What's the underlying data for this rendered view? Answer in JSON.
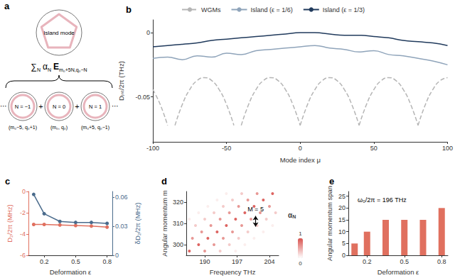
{
  "diagram": {
    "panel": "a",
    "top": {
      "label": "Island mode"
    },
    "formula": [
      {
        "text": "∑",
        "sub": "N"
      },
      {
        "text": "α",
        "sub": "N"
      },
      {
        "text": "E",
        "sub": "m₀+5N,q₀−N"
      }
    ],
    "modes": [
      {
        "label": "N = −1",
        "caption": "(m₀−5, q₀+1)"
      },
      {
        "label": "N = 0",
        "caption": "(m₀, q₀)"
      },
      {
        "label": "N = 1",
        "caption": "(m₀+5, q₀−1)"
      }
    ],
    "operator": "+",
    "ellipsis": "⋯"
  },
  "chart_data": [
    {
      "panel": "b",
      "type": "line",
      "xlabel": "Mode index μ",
      "ylabel": "Dᵢₙₜ/2π (THz)",
      "xlim": [
        -100,
        100
      ],
      "xticks": [
        -100,
        -50,
        0,
        50,
        100
      ],
      "ylim": [
        -0.085,
        0.01
      ],
      "yticks": [
        -0.05,
        0
      ],
      "grid": false,
      "legend": "top",
      "series": [
        {
          "name": "WGMs",
          "color": "#b5b5b5",
          "line_style": "dashed",
          "segments": [
            {
              "x": [
                -100,
                -95,
                -90
              ],
              "values": [
                -0.0443,
                -0.0559,
                -0.0722
              ]
            },
            {
              "x": [
                -85,
                -80,
                -75,
                -70,
                -65,
                -60,
                -55,
                -50,
                -45
              ],
              "values": [
                -0.0722,
                -0.0559,
                -0.0443,
                -0.0373,
                -0.035,
                -0.0373,
                -0.0443,
                -0.0559,
                -0.0722
              ]
            },
            {
              "x": [
                -40,
                -35,
                -30,
                -25,
                -20,
                -15,
                -10,
                -5,
                0
              ],
              "values": [
                -0.0722,
                -0.0559,
                -0.0443,
                -0.0373,
                -0.035,
                -0.0373,
                -0.0443,
                -0.0559,
                -0.0722
              ]
            },
            {
              "x": [
                0,
                5,
                10,
                15,
                20,
                25,
                30,
                35,
                40
              ],
              "values": [
                -0.0722,
                -0.0559,
                -0.0443,
                -0.0373,
                -0.035,
                -0.0373,
                -0.0443,
                -0.0559,
                -0.0722
              ]
            },
            {
              "x": [
                40,
                45,
                50,
                55,
                60,
                65,
                70,
                75,
                80
              ],
              "values": [
                -0.0722,
                -0.0559,
                -0.0443,
                -0.0373,
                -0.035,
                -0.0373,
                -0.0443,
                -0.0559,
                -0.0722
              ]
            },
            {
              "x": [
                80,
                85,
                90,
                95,
                100
              ],
              "values": [
                -0.0722,
                -0.0559,
                -0.0443,
                -0.0373,
                -0.035
              ]
            }
          ]
        },
        {
          "name": "Island (ε = 1/6)",
          "color": "#8fa4ba",
          "line_style": "solid",
          "x": [
            -100,
            -90,
            -80,
            -70,
            -60,
            -50,
            -40,
            -30,
            -20,
            -10,
            0,
            10,
            20,
            30,
            40,
            50,
            60,
            70,
            80,
            90,
            100
          ],
          "values": [
            -0.02,
            -0.019,
            -0.021,
            -0.018,
            -0.019,
            -0.016,
            -0.017,
            -0.014,
            -0.013,
            -0.012,
            -0.011,
            -0.01,
            -0.012,
            -0.013,
            -0.015,
            -0.014,
            -0.017,
            -0.018,
            -0.02,
            -0.022,
            -0.025
          ]
        },
        {
          "name": "Island (ε = 1/3)",
          "color": "#203a5c",
          "line_style": "solid",
          "x": [
            -100,
            -90,
            -80,
            -70,
            -60,
            -50,
            -40,
            -30,
            -20,
            -10,
            0,
            10,
            20,
            30,
            40,
            50,
            60,
            70,
            80,
            90,
            100
          ],
          "values": [
            -0.011,
            -0.01,
            -0.009,
            -0.008,
            -0.006,
            -0.005,
            -0.004,
            -0.003,
            -0.002,
            -0.001,
            0.0,
            0.0,
            -0.001,
            -0.002,
            -0.002,
            -0.003,
            -0.004,
            -0.006,
            -0.007,
            -0.008,
            -0.01
          ]
        }
      ]
    },
    {
      "panel": "c",
      "type": "line",
      "xlabel": "Deformation ε",
      "ylabel": "D₂/2π (MHz)",
      "y2label": "δD₂/2π (MHz)",
      "xlim": [
        0.05,
        0.85
      ],
      "xticks": [
        0.2,
        0.5,
        0.8
      ],
      "ylim": [
        -6,
        0
      ],
      "yticks": [
        -6,
        -4,
        -2,
        0
      ],
      "y2lim": [
        0,
        0.066
      ],
      "y2ticks": [
        0,
        0.03,
        0.06
      ],
      "grid": false,
      "marker": "circle",
      "x": [
        0.1,
        0.2,
        0.35,
        0.5,
        0.65,
        0.8
      ],
      "series": [
        {
          "color": "#e0705f",
          "values": [
            -3.1,
            -3.1,
            -3.15,
            -3.2,
            -3.25,
            -3.35
          ]
        },
        {
          "color": "#4a6b8c",
          "axis": "y2",
          "values": [
            0.063,
            0.043,
            0.035,
            0.034,
            0.034,
            0.033
          ]
        }
      ]
    },
    {
      "panel": "d",
      "type": "scatter",
      "xlabel": "Frequency THz",
      "ylabel": "Angular momentum m",
      "xlim": [
        186,
        206
      ],
      "xticks": [
        190,
        197,
        204
      ],
      "ylim": [
        295,
        325
      ],
      "yticks": [
        300,
        310,
        320
      ],
      "grid": false,
      "points": [
        [
          186.67,
          297,
          0.9
        ],
        [
          188.67,
          300,
          0.9
        ],
        [
          190.67,
          303,
          0.9
        ],
        [
          192.67,
          306,
          0.9
        ],
        [
          194.67,
          309,
          0.9
        ],
        [
          196.67,
          312,
          0.9
        ],
        [
          198.67,
          315,
          0.9
        ],
        [
          200.67,
          318,
          0.9
        ],
        [
          202.67,
          321,
          0.9
        ],
        [
          204.67,
          324,
          0.9
        ],
        [
          187.33,
          303,
          0.6
        ],
        [
          189.33,
          306,
          0.6
        ],
        [
          191.33,
          309,
          0.6
        ],
        [
          193.33,
          312,
          0.6
        ],
        [
          195.33,
          315,
          0.6
        ],
        [
          197.33,
          318,
          0.6
        ],
        [
          199.33,
          321,
          0.6
        ],
        [
          201.33,
          324,
          0.6
        ],
        [
          190,
          297,
          0.6
        ],
        [
          192,
          300,
          0.6
        ],
        [
          194,
          303,
          0.6
        ],
        [
          196,
          306,
          0.6
        ],
        [
          198,
          309,
          0.6
        ],
        [
          200,
          312,
          0.6
        ],
        [
          202,
          315,
          0.6
        ],
        [
          204,
          318,
          0.6
        ],
        [
          188,
          309,
          0.3
        ],
        [
          190,
          312,
          0.3
        ],
        [
          192,
          315,
          0.3
        ],
        [
          194,
          318,
          0.3
        ],
        [
          196,
          321,
          0.3
        ],
        [
          198,
          324,
          0.3
        ],
        [
          193.33,
          297,
          0.3
        ],
        [
          195.33,
          300,
          0.3
        ],
        [
          197.33,
          303,
          0.3
        ],
        [
          199.33,
          306,
          0.3
        ],
        [
          201.33,
          309,
          0.3
        ],
        [
          203.33,
          312,
          0.3
        ],
        [
          205.33,
          315,
          0.3
        ],
        [
          186.67,
          312,
          0.1
        ],
        [
          188.67,
          315,
          0.1
        ],
        [
          190.67,
          318,
          0.1
        ],
        [
          192.67,
          321,
          0.1
        ],
        [
          194.67,
          324,
          0.1
        ],
        [
          196.67,
          297,
          0.1
        ],
        [
          198.67,
          300,
          0.1
        ],
        [
          200.67,
          303,
          0.1
        ],
        [
          202.67,
          306,
          0.1
        ],
        [
          204.67,
          309,
          0.1
        ]
      ],
      "colorbar": {
        "label": {
          "text": "α",
          "sub": "N"
        },
        "range": [
          0,
          1
        ],
        "ticks": [
          0,
          1
        ],
        "color": "#d9534f"
      },
      "annotations": [
        {
          "text": "M = 5",
          "x": 201,
          "y": [
            308.5,
            313.5
          ]
        }
      ]
    },
    {
      "panel": "e",
      "type": "bar",
      "xlabel": "Deformation ε",
      "ylabel": "Angular momentum span",
      "xlim": [
        0.05,
        0.85
      ],
      "xticks": [
        0.2,
        0.5,
        0.8
      ],
      "ylim": [
        0,
        27
      ],
      "yticks": [
        0,
        5,
        10,
        15,
        20,
        25
      ],
      "grid": false,
      "x": [
        0.1,
        0.2,
        0.35,
        0.5,
        0.65,
        0.8
      ],
      "values": [
        5,
        10,
        15,
        15,
        15,
        20
      ],
      "color": "#e0705f",
      "annotations": [
        {
          "text": "ω₀/2π = 196 THz"
        }
      ]
    }
  ]
}
